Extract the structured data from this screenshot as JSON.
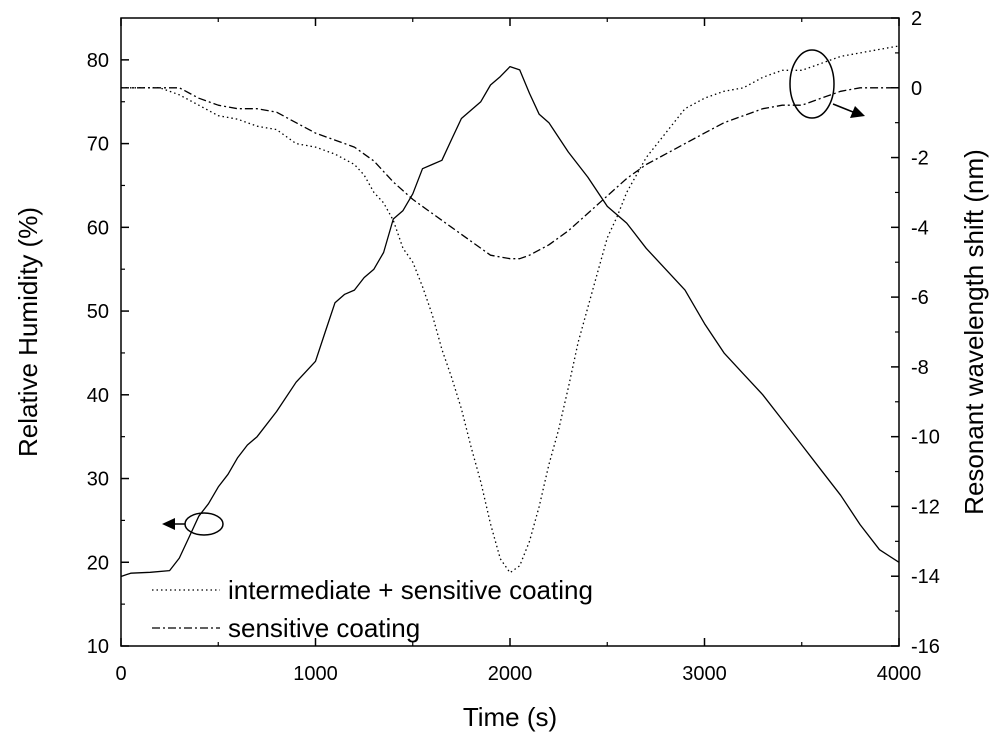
{
  "chart_data": {
    "type": "line",
    "title": "",
    "xlabel": "Time (s)",
    "ylabel": "Relative Humidity (%)",
    "y2label": "Resonant wavelength shift (nm)",
    "xlim": [
      0,
      4000
    ],
    "ylim": [
      10,
      85
    ],
    "y2lim": [
      -16,
      2
    ],
    "x_ticks": [
      0,
      1000,
      2000,
      3000,
      4000
    ],
    "y_ticks": [
      10,
      20,
      30,
      40,
      50,
      60,
      70,
      80
    ],
    "y2_ticks": [
      2,
      0,
      -2,
      -4,
      -6,
      -8,
      -10,
      -12,
      -14,
      -16
    ],
    "grid": false,
    "legend_position": "bottom-left",
    "series": [
      {
        "name": "Relative Humidity",
        "axis": "left",
        "style": "solid",
        "x": [
          0,
          50,
          150,
          250,
          300,
          350,
          400,
          450,
          500,
          550,
          600,
          650,
          700,
          800,
          900,
          1000,
          1050,
          1100,
          1150,
          1200,
          1250,
          1300,
          1350,
          1400,
          1450,
          1500,
          1550,
          1600,
          1650,
          1700,
          1750,
          1800,
          1850,
          1900,
          1950,
          2000,
          2050,
          2100,
          2150,
          2200,
          2300,
          2400,
          2500,
          2600,
          2700,
          2800,
          2900,
          3000,
          3100,
          3200,
          3300,
          3400,
          3500,
          3600,
          3700,
          3800,
          3900,
          4000
        ],
        "values": [
          18.3,
          18.7,
          18.8,
          19.0,
          20.5,
          23.0,
          25.5,
          27.0,
          29.0,
          30.5,
          32.5,
          34.0,
          35.0,
          38.0,
          41.5,
          44.0,
          47.5,
          51.0,
          52.0,
          52.5,
          54.0,
          55.0,
          57.0,
          61.0,
          62.0,
          64.0,
          67.0,
          67.5,
          68.0,
          70.5,
          73.0,
          74.0,
          75.0,
          77.0,
          78.0,
          79.2,
          78.8,
          76.0,
          73.5,
          72.5,
          69.0,
          66.0,
          62.5,
          60.5,
          57.5,
          55.0,
          52.5,
          48.5,
          45.0,
          42.5,
          40.0,
          37.0,
          34.0,
          31.0,
          28.0,
          24.5,
          21.5,
          20.0
        ]
      },
      {
        "name": "intermediate + sensitive coating",
        "axis": "right",
        "style": "dotted",
        "x": [
          0,
          100,
          200,
          300,
          400,
          500,
          600,
          700,
          800,
          900,
          1000,
          1100,
          1200,
          1250,
          1300,
          1350,
          1400,
          1450,
          1500,
          1550,
          1600,
          1650,
          1700,
          1750,
          1800,
          1850,
          1900,
          1950,
          2000,
          2050,
          2100,
          2150,
          2200,
          2250,
          2300,
          2350,
          2400,
          2450,
          2500,
          2550,
          2600,
          2700,
          2800,
          2900,
          3000,
          3100,
          3200,
          3300,
          3400,
          3500,
          3600,
          3700,
          3800,
          3900,
          4000
        ],
        "values": [
          0.0,
          0.0,
          0.0,
          -0.2,
          -0.5,
          -0.8,
          -0.9,
          -1.1,
          -1.2,
          -1.6,
          -1.7,
          -1.9,
          -2.2,
          -2.5,
          -3.0,
          -3.3,
          -3.8,
          -4.6,
          -5.0,
          -5.7,
          -6.5,
          -7.5,
          -8.3,
          -9.2,
          -10.3,
          -11.3,
          -12.5,
          -13.5,
          -13.9,
          -13.7,
          -13.0,
          -12.0,
          -10.8,
          -9.8,
          -8.6,
          -7.3,
          -6.3,
          -5.3,
          -4.3,
          -3.7,
          -3.0,
          -2.0,
          -1.3,
          -0.6,
          -0.3,
          -0.1,
          0.0,
          0.3,
          0.5,
          0.5,
          0.7,
          0.9,
          1.0,
          1.1,
          1.2
        ]
      },
      {
        "name": "sensitive coating",
        "axis": "right",
        "style": "dash-dot",
        "x": [
          0,
          100,
          200,
          300,
          400,
          500,
          600,
          700,
          800,
          900,
          1000,
          1100,
          1200,
          1300,
          1400,
          1500,
          1600,
          1700,
          1800,
          1900,
          2000,
          2050,
          2100,
          2200,
          2300,
          2400,
          2500,
          2600,
          2700,
          2800,
          2900,
          3000,
          3100,
          3200,
          3300,
          3400,
          3500,
          3600,
          3700,
          3800,
          3900,
          4000
        ],
        "values": [
          0.0,
          0.0,
          0.0,
          0.0,
          -0.3,
          -0.5,
          -0.6,
          -0.6,
          -0.7,
          -1.0,
          -1.3,
          -1.5,
          -1.7,
          -2.1,
          -2.7,
          -3.2,
          -3.6,
          -4.0,
          -4.4,
          -4.8,
          -4.9,
          -4.9,
          -4.8,
          -4.5,
          -4.1,
          -3.6,
          -3.1,
          -2.6,
          -2.2,
          -1.9,
          -1.6,
          -1.3,
          -1.0,
          -0.8,
          -0.6,
          -0.5,
          -0.5,
          -0.3,
          -0.1,
          0.0,
          0.0,
          0.0
        ]
      }
    ],
    "legend": [
      {
        "name": "intermediate + sensitive coating",
        "style": "dotted"
      },
      {
        "name": "sensitive coating",
        "style": "dash-dot"
      }
    ]
  }
}
